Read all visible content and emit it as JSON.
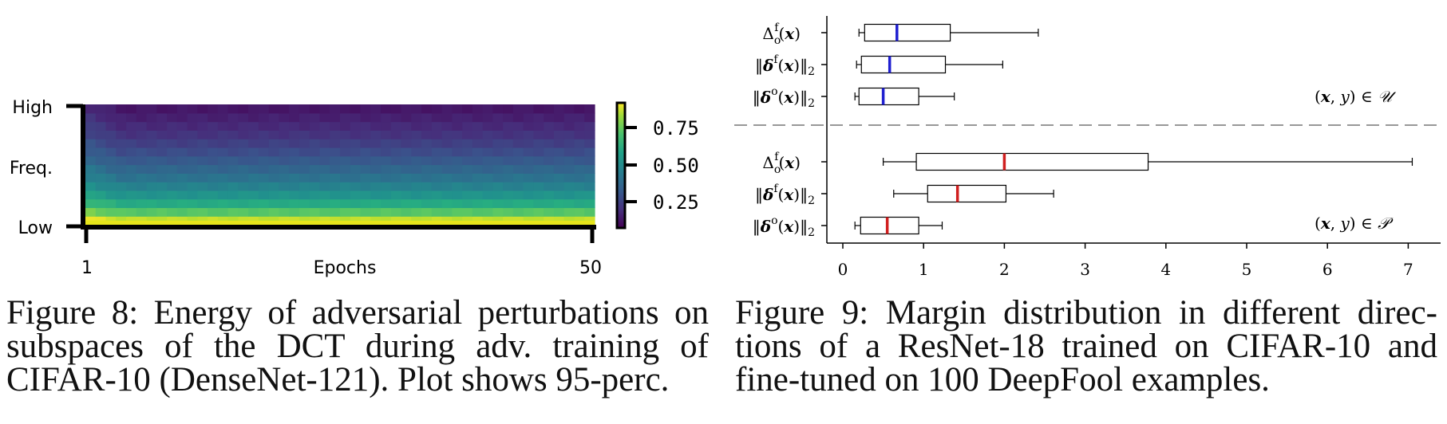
{
  "figure8": {
    "chart_data": {
      "type": "heatmap",
      "title": "",
      "xlabel": "Epochs",
      "ylabel": "Freq.",
      "x_tick_labels": [
        "1",
        "50"
      ],
      "y_tick_labels": [
        "High",
        "Low"
      ],
      "colorbar_ticks": [
        "0.75",
        "0.50",
        "0.25"
      ],
      "colormap": "viridis",
      "n_epochs": 50,
      "n_freq_bands": 14,
      "band_energy_low_to_high": [
        0.9,
        0.72,
        0.6,
        0.5,
        0.43,
        0.37,
        0.32,
        0.27,
        0.22,
        0.18,
        0.14,
        0.11,
        0.08,
        0.05
      ]
    }
  },
  "figure9": {
    "chart_data": {
      "type": "boxplot",
      "x_ticks": [
        0,
        1,
        2,
        3,
        4,
        5,
        6,
        7
      ],
      "xlim": [
        -0.1,
        7.4
      ],
      "groups": [
        {
          "label": "(x, y) ∈ U",
          "median_color": "#1f1fd0",
          "boxes": [
            {
              "label": "Δ_o^f(x)",
              "whisker_low": 0.2,
              "q1": 0.27,
              "median": 0.67,
              "q3": 1.33,
              "whisker_high": 2.42
            },
            {
              "label": "‖δ^f(x)‖₂",
              "whisker_low": 0.17,
              "q1": 0.23,
              "median": 0.58,
              "q3": 1.27,
              "whisker_high": 1.98
            },
            {
              "label": "‖δ^o(x)‖₂",
              "whisker_low": 0.15,
              "q1": 0.2,
              "median": 0.5,
              "q3": 0.94,
              "whisker_high": 1.38
            }
          ]
        },
        {
          "label": "(x, y) ∈ P",
          "median_color": "#d01f1f",
          "boxes": [
            {
              "label": "Δ_o^f(x)",
              "whisker_low": 0.5,
              "q1": 0.91,
              "median": 2.0,
              "q3": 3.78,
              "whisker_high": 7.05
            },
            {
              "label": "‖δ^f(x)‖₂",
              "whisker_low": 0.63,
              "q1": 1.05,
              "median": 1.42,
              "q3": 2.02,
              "whisker_high": 2.61
            },
            {
              "label": "‖δ^o(x)‖₂",
              "whisker_low": 0.15,
              "q1": 0.22,
              "median": 0.55,
              "q3": 0.94,
              "whisker_high": 1.23
            }
          ]
        }
      ]
    }
  },
  "captions": {
    "fig8": [
      "Figure 8: Energy of adversarial perturbations on",
      "subspaces of the DCT during adv.  training of",
      "CIFAR-10 (DenseNet-121). Plot shows 95-perc."
    ],
    "fig9": [
      "Figure 9: Margin distribution in different direc-",
      "tions of a ResNet-18 trained on CIFAR-10 and",
      "fine-tuned on 100 DeepFool examples."
    ]
  }
}
